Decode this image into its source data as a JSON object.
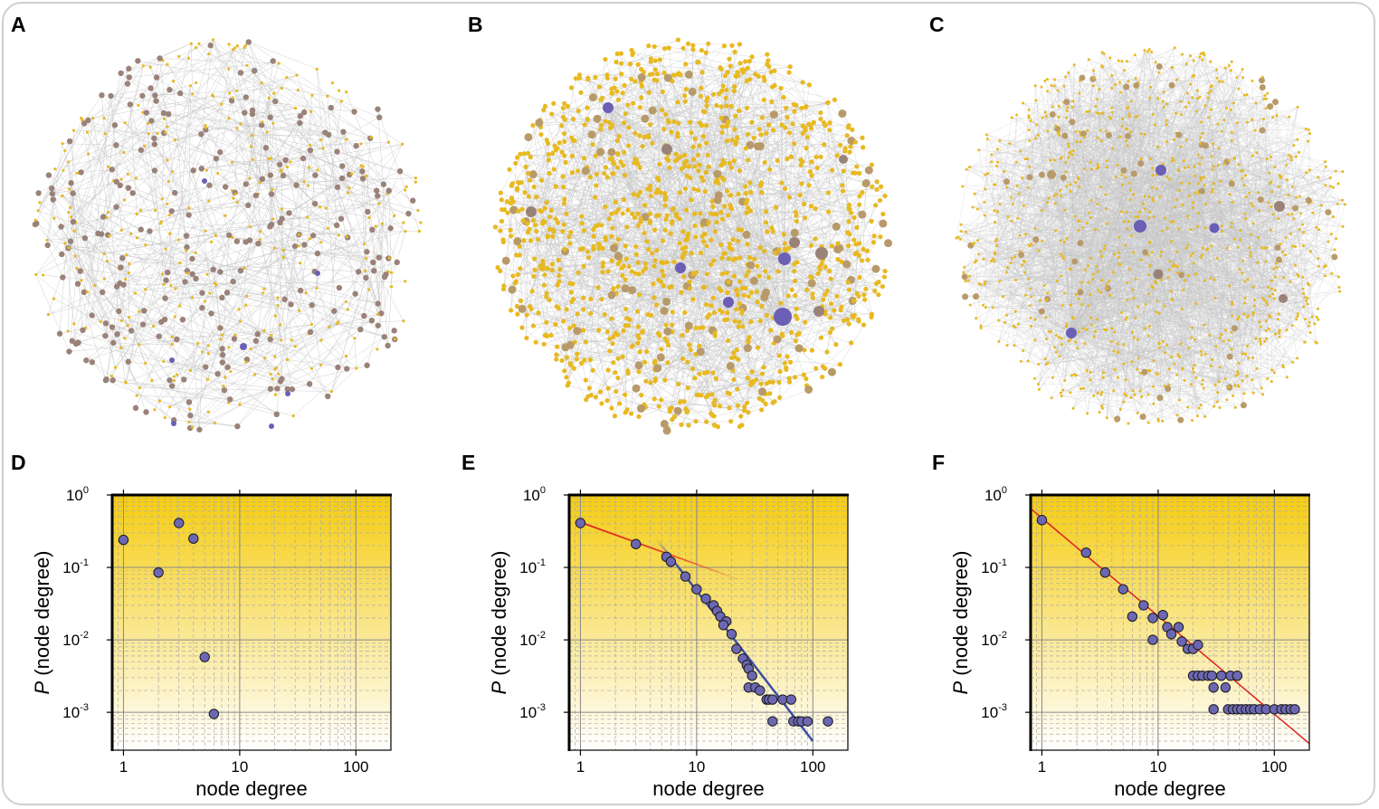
{
  "figure": {
    "panels": [
      {
        "letter": "A",
        "kind": "network"
      },
      {
        "letter": "B",
        "kind": "network"
      },
      {
        "letter": "C",
        "kind": "network"
      },
      {
        "letter": "D",
        "kind": "plot"
      },
      {
        "letter": "E",
        "kind": "plot"
      },
      {
        "letter": "F",
        "kind": "plot"
      }
    ]
  },
  "colors": {
    "node_small": "#e8b920",
    "node_medium": "#b89a6a",
    "node_brown": "#9a8279",
    "node_hub": "#6a5fb5",
    "edge": "#c4c4c4",
    "point_fill": "#6c67b2",
    "fit_red": "#e02020",
    "fit_blue": "#3a4fa2",
    "gradient_top": "#f5cc10",
    "gradient_bottom": "#ffffff"
  },
  "chart_data": [
    {
      "panel": "D",
      "type": "scatter",
      "xscale": "log",
      "yscale": "log",
      "xlim": [
        0.8,
        200
      ],
      "ylim": [
        0.0003,
        1
      ],
      "xlabel": "node degree",
      "ylabel_italic": "P",
      "ylabel_rest": " (node degree)",
      "x_ticks": [
        "1",
        "10",
        "100"
      ],
      "y_ticks": [
        {
          "base": "10",
          "exp": "0"
        },
        {
          "base": "10",
          "exp": "-1"
        },
        {
          "base": "10",
          "exp": "-2"
        },
        {
          "base": "10",
          "exp": "-3"
        }
      ],
      "points": [
        [
          1,
          0.24
        ],
        [
          2,
          0.085
        ],
        [
          3,
          0.41
        ],
        [
          4,
          0.25
        ],
        [
          5,
          0.0058
        ],
        [
          6,
          0.00095
        ]
      ],
      "fits": []
    },
    {
      "panel": "E",
      "type": "scatter",
      "xscale": "log",
      "yscale": "log",
      "xlim": [
        0.8,
        200
      ],
      "ylim": [
        0.0003,
        1
      ],
      "xlabel": "node degree",
      "ylabel_italic": "P",
      "ylabel_rest": " (node degree)",
      "x_ticks": [
        "1",
        "10",
        "100"
      ],
      "y_ticks": [
        {
          "base": "10",
          "exp": "0"
        },
        {
          "base": "10",
          "exp": "-1"
        },
        {
          "base": "10",
          "exp": "-2"
        },
        {
          "base": "10",
          "exp": "-3"
        }
      ],
      "points": [
        [
          1,
          0.41
        ],
        [
          3,
          0.21
        ],
        [
          5.5,
          0.14
        ],
        [
          6,
          0.12
        ],
        [
          8,
          0.075
        ],
        [
          10,
          0.05
        ],
        [
          12,
          0.037
        ],
        [
          14,
          0.03
        ],
        [
          15,
          0.025
        ],
        [
          16,
          0.021
        ],
        [
          18,
          0.018
        ],
        [
          17,
          0.016
        ],
        [
          20,
          0.012
        ],
        [
          22,
          0.0075
        ],
        [
          25,
          0.0055
        ],
        [
          27,
          0.0045
        ],
        [
          28,
          0.004
        ],
        [
          30,
          0.0032
        ],
        [
          28,
          0.0022
        ],
        [
          32,
          0.0022
        ],
        [
          35,
          0.002
        ],
        [
          40,
          0.0015
        ],
        [
          42,
          0.0015
        ],
        [
          45,
          0.0015
        ],
        [
          55,
          0.0015
        ],
        [
          65,
          0.0015
        ],
        [
          45,
          0.00075
        ],
        [
          68,
          0.00075
        ],
        [
          75,
          0.00075
        ],
        [
          80,
          0.00075
        ],
        [
          90,
          0.00075
        ],
        [
          135,
          0.00075
        ]
      ],
      "fits": [
        {
          "name": "fit-red",
          "color": "red",
          "x0": 1,
          "y0": 0.42,
          "x1": 25,
          "y1": 0.065
        },
        {
          "name": "fit-blue",
          "color": "blue",
          "x0": 4.5,
          "y0": 0.25,
          "x1": 100,
          "y1": 0.0004
        }
      ]
    },
    {
      "panel": "F",
      "type": "scatter",
      "xscale": "log",
      "yscale": "log",
      "xlim": [
        0.8,
        200
      ],
      "ylim": [
        0.0003,
        1
      ],
      "xlabel": "node degree",
      "ylabel_italic": "P",
      "ylabel_rest": " (node degree)",
      "x_ticks": [
        "1",
        "10",
        "100"
      ],
      "y_ticks": [
        {
          "base": "10",
          "exp": "0"
        },
        {
          "base": "10",
          "exp": "-1"
        },
        {
          "base": "10",
          "exp": "-2"
        },
        {
          "base": "10",
          "exp": "-3"
        }
      ],
      "points": [
        [
          1,
          0.45
        ],
        [
          2.4,
          0.16
        ],
        [
          3.5,
          0.085
        ],
        [
          5,
          0.05
        ],
        [
          6,
          0.021
        ],
        [
          7.5,
          0.03
        ],
        [
          9,
          0.01
        ],
        [
          9,
          0.02
        ],
        [
          11,
          0.022
        ],
        [
          12,
          0.015
        ],
        [
          13,
          0.012
        ],
        [
          15,
          0.015
        ],
        [
          16,
          0.0095
        ],
        [
          18,
          0.0075
        ],
        [
          20,
          0.0075
        ],
        [
          22,
          0.0085
        ],
        [
          20,
          0.0032
        ],
        [
          22,
          0.0032
        ],
        [
          24,
          0.0032
        ],
        [
          27,
          0.0032
        ],
        [
          29,
          0.0032
        ],
        [
          35,
          0.0032
        ],
        [
          42,
          0.0032
        ],
        [
          48,
          0.0032
        ],
        [
          30,
          0.0022
        ],
        [
          38,
          0.0022
        ],
        [
          30,
          0.0011
        ],
        [
          40,
          0.0011
        ],
        [
          44,
          0.0011
        ],
        [
          48,
          0.0011
        ],
        [
          52,
          0.0011
        ],
        [
          57,
          0.0011
        ],
        [
          62,
          0.0011
        ],
        [
          67,
          0.0011
        ],
        [
          75,
          0.0011
        ],
        [
          85,
          0.0011
        ],
        [
          100,
          0.0011
        ],
        [
          115,
          0.0011
        ],
        [
          125,
          0.0011
        ],
        [
          138,
          0.0011
        ],
        [
          150,
          0.0011
        ]
      ],
      "fits": [
        {
          "name": "fit-red",
          "color": "red",
          "x0": 0.8,
          "y0": 0.65,
          "x1": 200,
          "y1": 0.00037
        }
      ]
    }
  ]
}
